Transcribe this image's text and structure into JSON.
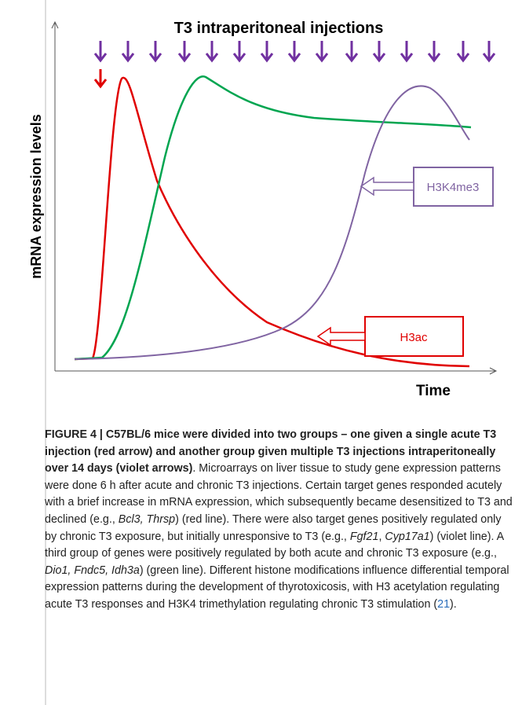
{
  "figure": {
    "title": "T3 intraperitoneal injections",
    "y_label": "mRNA expression levels",
    "x_label": "Time",
    "box_violet": "H3K4me3",
    "box_red": "H3ac"
  },
  "caption": {
    "runs": [
      "FIGURE 4 | C57BL/6 mice were divided into two groups – one given a single acute T3 injection (red arrow) and another group given multiple T3 injections intraperitoneally over 14 days (violet arrows)",
      ". Microarrays on liver tissue to study gene expression patterns were done 6 h after acute and chronic T3 injections. Certain target genes responded acutely with a brief increase in mRNA expression, which subsequently became desensitized to T3 and declined (e.g., ",
      "Bcl3, Thrsp",
      ") (red line). There were also target genes positively regulated only by chronic T3 exposure, but initially unresponsive to T3 (e.g., ",
      "Fgf21",
      ", ",
      "Cyp17a1",
      ") (violet line). A third group of genes were positively regulated by both acute and chronic T3 exposure (e.g., ",
      "Dio1, Fndc5, Idh3a",
      ") (green line). Different histone modifications influence differential temporal expression patterns during the development of thyrotoxicosis, with H3 acetylation regulating acute T3 responses and H3K4 trimethylation regulating chronic T3 stimulation (",
      "21",
      ")."
    ]
  }
}
